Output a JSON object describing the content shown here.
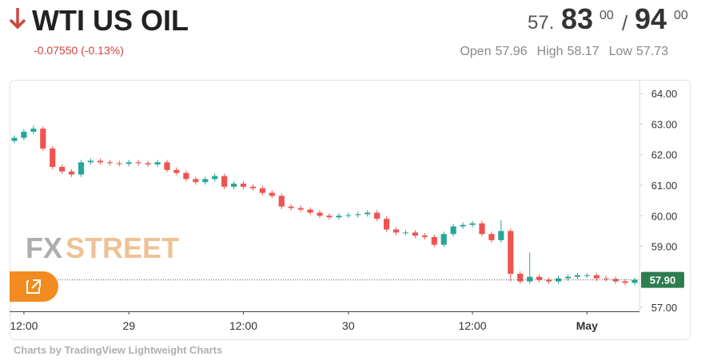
{
  "header": {
    "title": "WTI US OIL",
    "change": "-0.07550 (-0.13%)",
    "bid_big": "57.",
    "bid_main": "83",
    "bid_small": "00",
    "separator": "/",
    "ask_main": "94",
    "ask_small": "00",
    "stats": [
      {
        "label": "Open",
        "value": "57.96"
      },
      {
        "label": "High",
        "value": "58.17"
      },
      {
        "label": "Low",
        "value": "57.73"
      }
    ]
  },
  "watermark": [
    "FX",
    "STREET"
  ],
  "footer": "Charts by TradingView Lightweight Charts",
  "chart_data": {
    "type": "candlestick",
    "up_color": "#26a69a",
    "down_color": "#ef5350",
    "categories": [
      null,
      "12:00",
      null,
      null,
      null,
      null,
      null,
      null,
      null,
      null,
      null,
      null,
      "29",
      null,
      null,
      null,
      null,
      null,
      null,
      null,
      null,
      null,
      null,
      null,
      "12:00",
      null,
      null,
      null,
      null,
      null,
      null,
      null,
      null,
      null,
      null,
      "30",
      null,
      null,
      null,
      null,
      null,
      null,
      null,
      null,
      null,
      null,
      null,
      null,
      "12:00",
      null,
      null,
      null,
      null,
      null,
      null,
      null,
      null,
      null,
      null,
      null,
      "May",
      null,
      null,
      null,
      null,
      null
    ],
    "open": [
      62.45,
      62.55,
      62.75,
      62.85,
      62.2,
      61.6,
      61.45,
      61.35,
      61.75,
      61.8,
      61.75,
      61.72,
      61.7,
      61.75,
      61.72,
      61.68,
      61.75,
      61.5,
      61.4,
      61.2,
      61.1,
      61.2,
      61.3,
      60.95,
      61.05,
      60.95,
      60.9,
      60.75,
      60.65,
      60.3,
      60.25,
      60.2,
      60.1,
      60.0,
      59.95,
      60.0,
      60.02,
      60.05,
      60.1,
      59.9,
      59.55,
      59.45,
      59.45,
      59.35,
      59.3,
      59.05,
      59.4,
      59.65,
      59.7,
      59.75,
      59.4,
      59.2,
      59.5,
      58.1,
      57.85,
      58.0,
      57.9,
      57.85,
      57.95,
      58.0,
      58.05,
      58.05,
      57.95,
      57.93,
      57.85,
      57.8
    ],
    "high": [
      62.63,
      62.83,
      62.95,
      62.93,
      62.28,
      61.68,
      61.53,
      61.83,
      61.88,
      61.88,
      61.83,
      61.8,
      61.83,
      61.83,
      61.8,
      61.83,
      61.83,
      61.58,
      61.48,
      61.28,
      61.28,
      61.38,
      61.38,
      61.13,
      61.13,
      61.03,
      60.98,
      60.83,
      60.73,
      60.38,
      60.33,
      60.28,
      60.18,
      60.08,
      60.08,
      60.1,
      60.13,
      60.18,
      60.18,
      59.98,
      59.63,
      59.53,
      59.53,
      59.43,
      59.38,
      59.48,
      59.73,
      59.78,
      59.83,
      59.83,
      59.48,
      59.85,
      59.58,
      58.18,
      58.8,
      58.08,
      57.98,
      58.03,
      58.08,
      58.13,
      58.13,
      58.13,
      58.03,
      58.01,
      57.93,
      57.98
    ],
    "low": [
      62.37,
      62.47,
      62.67,
      62.12,
      61.52,
      61.37,
      61.27,
      61.27,
      61.67,
      61.67,
      61.64,
      61.62,
      61.62,
      61.64,
      61.6,
      61.6,
      61.42,
      61.32,
      61.12,
      61.02,
      61.02,
      61.12,
      60.87,
      60.87,
      60.87,
      60.82,
      60.67,
      60.57,
      60.22,
      60.17,
      60.12,
      60.02,
      59.92,
      59.87,
      59.87,
      59.92,
      59.94,
      59.97,
      59.82,
      59.47,
      59.37,
      59.37,
      59.27,
      59.22,
      58.97,
      58.97,
      59.32,
      59.57,
      59.62,
      59.32,
      59.12,
      59.12,
      57.85,
      57.77,
      57.77,
      57.82,
      57.77,
      57.77,
      57.87,
      57.92,
      57.97,
      57.87,
      57.85,
      57.77,
      57.72,
      57.72
    ],
    "close": [
      62.55,
      62.75,
      62.85,
      62.2,
      61.6,
      61.45,
      61.35,
      61.75,
      61.8,
      61.75,
      61.72,
      61.7,
      61.75,
      61.72,
      61.68,
      61.75,
      61.5,
      61.4,
      61.2,
      61.1,
      61.2,
      61.3,
      60.95,
      61.05,
      60.95,
      60.9,
      60.75,
      60.65,
      60.3,
      60.25,
      60.2,
      60.1,
      60.0,
      59.95,
      60.0,
      60.02,
      60.05,
      60.1,
      59.9,
      59.55,
      59.45,
      59.45,
      59.35,
      59.3,
      59.05,
      59.4,
      59.65,
      59.7,
      59.75,
      59.4,
      59.2,
      59.5,
      58.1,
      57.85,
      58.0,
      57.9,
      57.85,
      57.95,
      58.0,
      58.05,
      58.05,
      57.95,
      57.93,
      57.85,
      57.8,
      57.9
    ],
    "ylim": [
      56.87,
      64.45
    ],
    "yticks": [
      {
        "value": 57,
        "label": "57.00"
      },
      {
        "value": 59,
        "label": "59.00"
      },
      {
        "value": 60,
        "label": "60.00"
      },
      {
        "value": 61,
        "label": "61.00"
      },
      {
        "value": 62,
        "label": "62.00"
      },
      {
        "value": 63,
        "label": "63.00"
      },
      {
        "value": 64,
        "label": "64.00"
      }
    ],
    "last_price": {
      "value": 57.9,
      "label": "57.90",
      "color": "#2e7d4f"
    }
  }
}
